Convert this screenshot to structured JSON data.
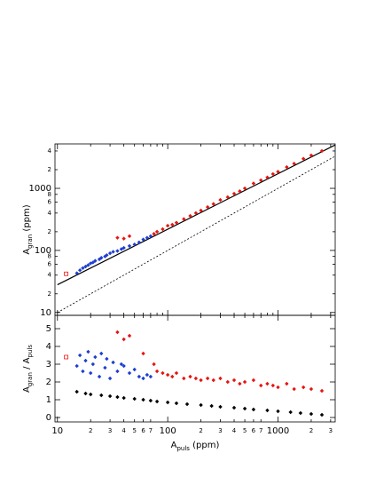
{
  "chart_data": [
    {
      "type": "scatter",
      "xlog": true,
      "ylog": true,
      "xlim": [
        9.5,
        3300
      ],
      "ylim": [
        9,
        5200
      ],
      "xticks": [
        10,
        20,
        30,
        40,
        50,
        60,
        70,
        80,
        90,
        100,
        200,
        300,
        400,
        500,
        600,
        700,
        800,
        900,
        1000,
        2000,
        3000
      ],
      "yticks": [
        10,
        {
          "value": 20,
          "label": "2"
        },
        {
          "value": 40,
          "label": "4"
        },
        {
          "value": 60,
          "label": "6"
        },
        {
          "value": 80,
          "label": "8"
        },
        100,
        {
          "value": 200,
          "label": "2"
        },
        {
          "value": 400,
          "label": "4"
        },
        {
          "value": 600,
          "label": "6"
        },
        {
          "value": 800,
          "label": "8"
        },
        1000,
        {
          "value": 2000,
          "label": "2"
        },
        {
          "value": 4000,
          "label": "4"
        }
      ],
      "ylabel": [
        "A",
        "gran",
        " (ppm)"
      ],
      "series": [
        {
          "color": "#000000",
          "mode": "line",
          "dash": false,
          "x": [
            10,
            3300
          ],
          "values": [
            28,
            5000
          ]
        },
        {
          "color": "#000000",
          "mode": "line",
          "dash": true,
          "x": [
            10,
            3300
          ],
          "values": [
            10,
            3300
          ]
        },
        {
          "color": "#1f3fd0",
          "marker": "dot",
          "x": [
            15,
            16,
            17,
            18,
            19,
            20,
            21,
            22,
            24,
            25,
            27,
            28,
            30,
            32,
            35,
            38,
            40,
            45,
            50,
            55,
            60,
            65,
            70
          ],
          "values": [
            43,
            48,
            52,
            55,
            58,
            62,
            64,
            68,
            72,
            76,
            80,
            84,
            90,
            95,
            98,
            105,
            110,
            118,
            125,
            135,
            150,
            160,
            170
          ]
        },
        {
          "color": "#e8140f",
          "marker": "dot",
          "x": [
            35,
            40,
            45,
            75,
            80,
            90,
            100,
            110,
            120,
            140,
            160,
            180,
            200,
            230,
            260,
            300,
            350,
            400,
            450,
            500,
            600,
            700,
            800,
            900,
            1000,
            1200,
            1400,
            1700,
            2000,
            2500
          ],
          "values": [
            160,
            155,
            170,
            185,
            200,
            220,
            250,
            260,
            280,
            320,
            360,
            400,
            440,
            500,
            560,
            650,
            720,
            820,
            900,
            1000,
            1200,
            1350,
            1500,
            1700,
            1850,
            2200,
            2500,
            3000,
            3400,
            4000
          ]
        },
        {
          "color": "#e8140f",
          "marker": "square-open",
          "x": [
            12
          ],
          "values": [
            42
          ]
        }
      ]
    },
    {
      "type": "scatter",
      "xlog": true,
      "ylog": false,
      "xlim": [
        9.5,
        3300
      ],
      "ylim": [
        -0.25,
        5.75
      ],
      "xticks": [
        10,
        {
          "value": 20,
          "label": "2"
        },
        {
          "value": 30,
          "label": "3"
        },
        {
          "value": 40,
          "label": "4"
        },
        {
          "value": 50,
          "label": "5"
        },
        {
          "value": 60,
          "label": "6"
        },
        {
          "value": 70,
          "label": "7"
        },
        100,
        {
          "value": 200,
          "label": "2"
        },
        {
          "value": 300,
          "label": "3"
        },
        {
          "value": 400,
          "label": "4"
        },
        {
          "value": 500,
          "label": "5"
        },
        {
          "value": 600,
          "label": "6"
        },
        {
          "value": 700,
          "label": "7"
        },
        1000,
        {
          "value": 2000,
          "label": "2"
        },
        {
          "value": 3000,
          "label": "3"
        }
      ],
      "yticks": [
        0,
        1,
        2,
        3,
        4,
        5
      ],
      "xlabel": [
        "A",
        "puls",
        " (ppm)"
      ],
      "ylabel": [
        "A",
        "gran",
        " / A",
        "puls"
      ],
      "series": [
        {
          "color": "#1f3fd0",
          "marker": "dot",
          "x": [
            15,
            16,
            17,
            18,
            19,
            20,
            21,
            22,
            24,
            25,
            27,
            28,
            30,
            32,
            35,
            38,
            40,
            45,
            50,
            55,
            60,
            65,
            70
          ],
          "values": [
            2.9,
            3.5,
            2.6,
            3.2,
            3.7,
            2.5,
            3.0,
            3.4,
            2.3,
            3.6,
            2.8,
            3.3,
            2.2,
            3.1,
            2.6,
            3.0,
            2.9,
            2.5,
            2.7,
            2.3,
            2.2,
            2.4,
            2.3
          ]
        },
        {
          "color": "#e8140f",
          "marker": "dot",
          "x": [
            35,
            40,
            45,
            60,
            75,
            80,
            90,
            100,
            110,
            120,
            140,
            160,
            180,
            200,
            230,
            260,
            300,
            350,
            400,
            450,
            500,
            600,
            700,
            800,
            900,
            1000,
            1200,
            1400,
            1700,
            2000,
            2500
          ],
          "values": [
            4.8,
            4.4,
            4.6,
            3.6,
            3.0,
            2.6,
            2.5,
            2.4,
            2.3,
            2.5,
            2.2,
            2.3,
            2.2,
            2.1,
            2.2,
            2.1,
            2.2,
            2.0,
            2.1,
            1.9,
            2.0,
            2.1,
            1.8,
            1.9,
            1.8,
            1.7,
            1.9,
            1.6,
            1.7,
            1.6,
            1.5
          ]
        },
        {
          "color": "#000000",
          "marker": "dot",
          "x": [
            15,
            18,
            20,
            25,
            30,
            35,
            40,
            50,
            60,
            70,
            80,
            100,
            120,
            150,
            200,
            250,
            300,
            400,
            500,
            600,
            800,
            1000,
            1300,
            1600,
            2000,
            2500
          ],
          "values": [
            1.45,
            1.35,
            1.3,
            1.25,
            1.2,
            1.15,
            1.1,
            1.05,
            1.0,
            0.95,
            0.9,
            0.85,
            0.8,
            0.75,
            0.7,
            0.65,
            0.6,
            0.55,
            0.5,
            0.45,
            0.4,
            0.35,
            0.3,
            0.25,
            0.2,
            0.15
          ]
        },
        {
          "color": "#e8140f",
          "marker": "square-open",
          "x": [
            12
          ],
          "values": [
            3.4
          ]
        }
      ]
    }
  ]
}
